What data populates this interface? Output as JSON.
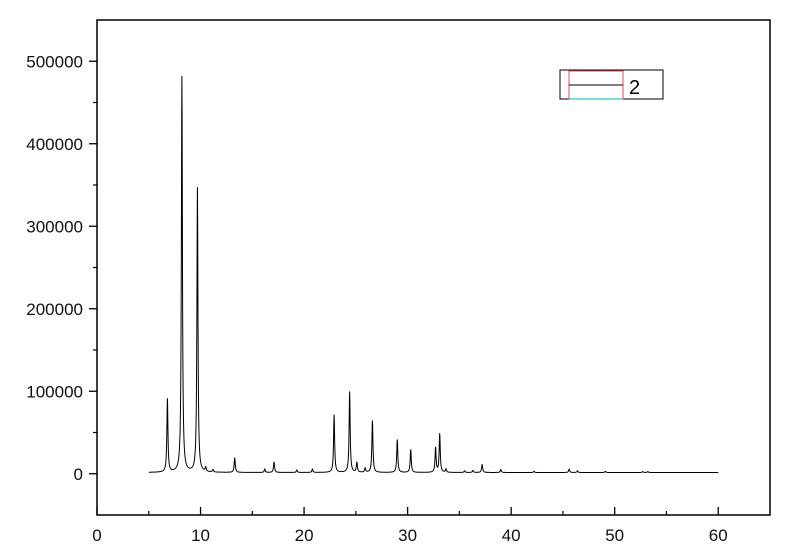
{
  "chart_data": {
    "type": "line",
    "title": "",
    "xlabel": "",
    "ylabel": "",
    "xlim": [
      0,
      65
    ],
    "ylim": [
      -50000,
      550000
    ],
    "x_ticks": [
      "0",
      "10",
      "20",
      "30",
      "40",
      "50",
      "60"
    ],
    "y_ticks": [
      "0",
      "100000",
      "200000",
      "300000",
      "400000",
      "500000"
    ],
    "grid": false,
    "legend": {
      "position": "top-right",
      "entries": [
        "2"
      ]
    },
    "series": [
      {
        "name": "2",
        "color": "#000000",
        "x_range": [
          5,
          60
        ],
        "baseline": 1500,
        "peaks": [
          {
            "x": 6.8,
            "y": 89000
          },
          {
            "x": 8.2,
            "y": 480000
          },
          {
            "x": 9.7,
            "y": 345000
          },
          {
            "x": 10.5,
            "y": 5000
          },
          {
            "x": 11.2,
            "y": 3000
          },
          {
            "x": 13.3,
            "y": 18000
          },
          {
            "x": 16.2,
            "y": 4000
          },
          {
            "x": 17.1,
            "y": 13000
          },
          {
            "x": 19.3,
            "y": 3000
          },
          {
            "x": 20.8,
            "y": 4000
          },
          {
            "x": 22.9,
            "y": 70000
          },
          {
            "x": 24.4,
            "y": 98000
          },
          {
            "x": 25.1,
            "y": 12000
          },
          {
            "x": 25.9,
            "y": 5000
          },
          {
            "x": 26.6,
            "y": 63000
          },
          {
            "x": 29.0,
            "y": 40000
          },
          {
            "x": 30.3,
            "y": 28000
          },
          {
            "x": 32.7,
            "y": 30000
          },
          {
            "x": 33.1,
            "y": 47000
          },
          {
            "x": 33.7,
            "y": 4000
          },
          {
            "x": 35.5,
            "y": 2000
          },
          {
            "x": 36.3,
            "y": 2500
          },
          {
            "x": 37.2,
            "y": 10000
          },
          {
            "x": 39.0,
            "y": 3500
          },
          {
            "x": 42.2,
            "y": 1500
          },
          {
            "x": 45.6,
            "y": 4000
          },
          {
            "x": 46.4,
            "y": 2000
          },
          {
            "x": 49.1,
            "y": 1500
          },
          {
            "x": 52.7,
            "y": 1200
          },
          {
            "x": 53.2,
            "y": 1200
          }
        ]
      }
    ]
  }
}
